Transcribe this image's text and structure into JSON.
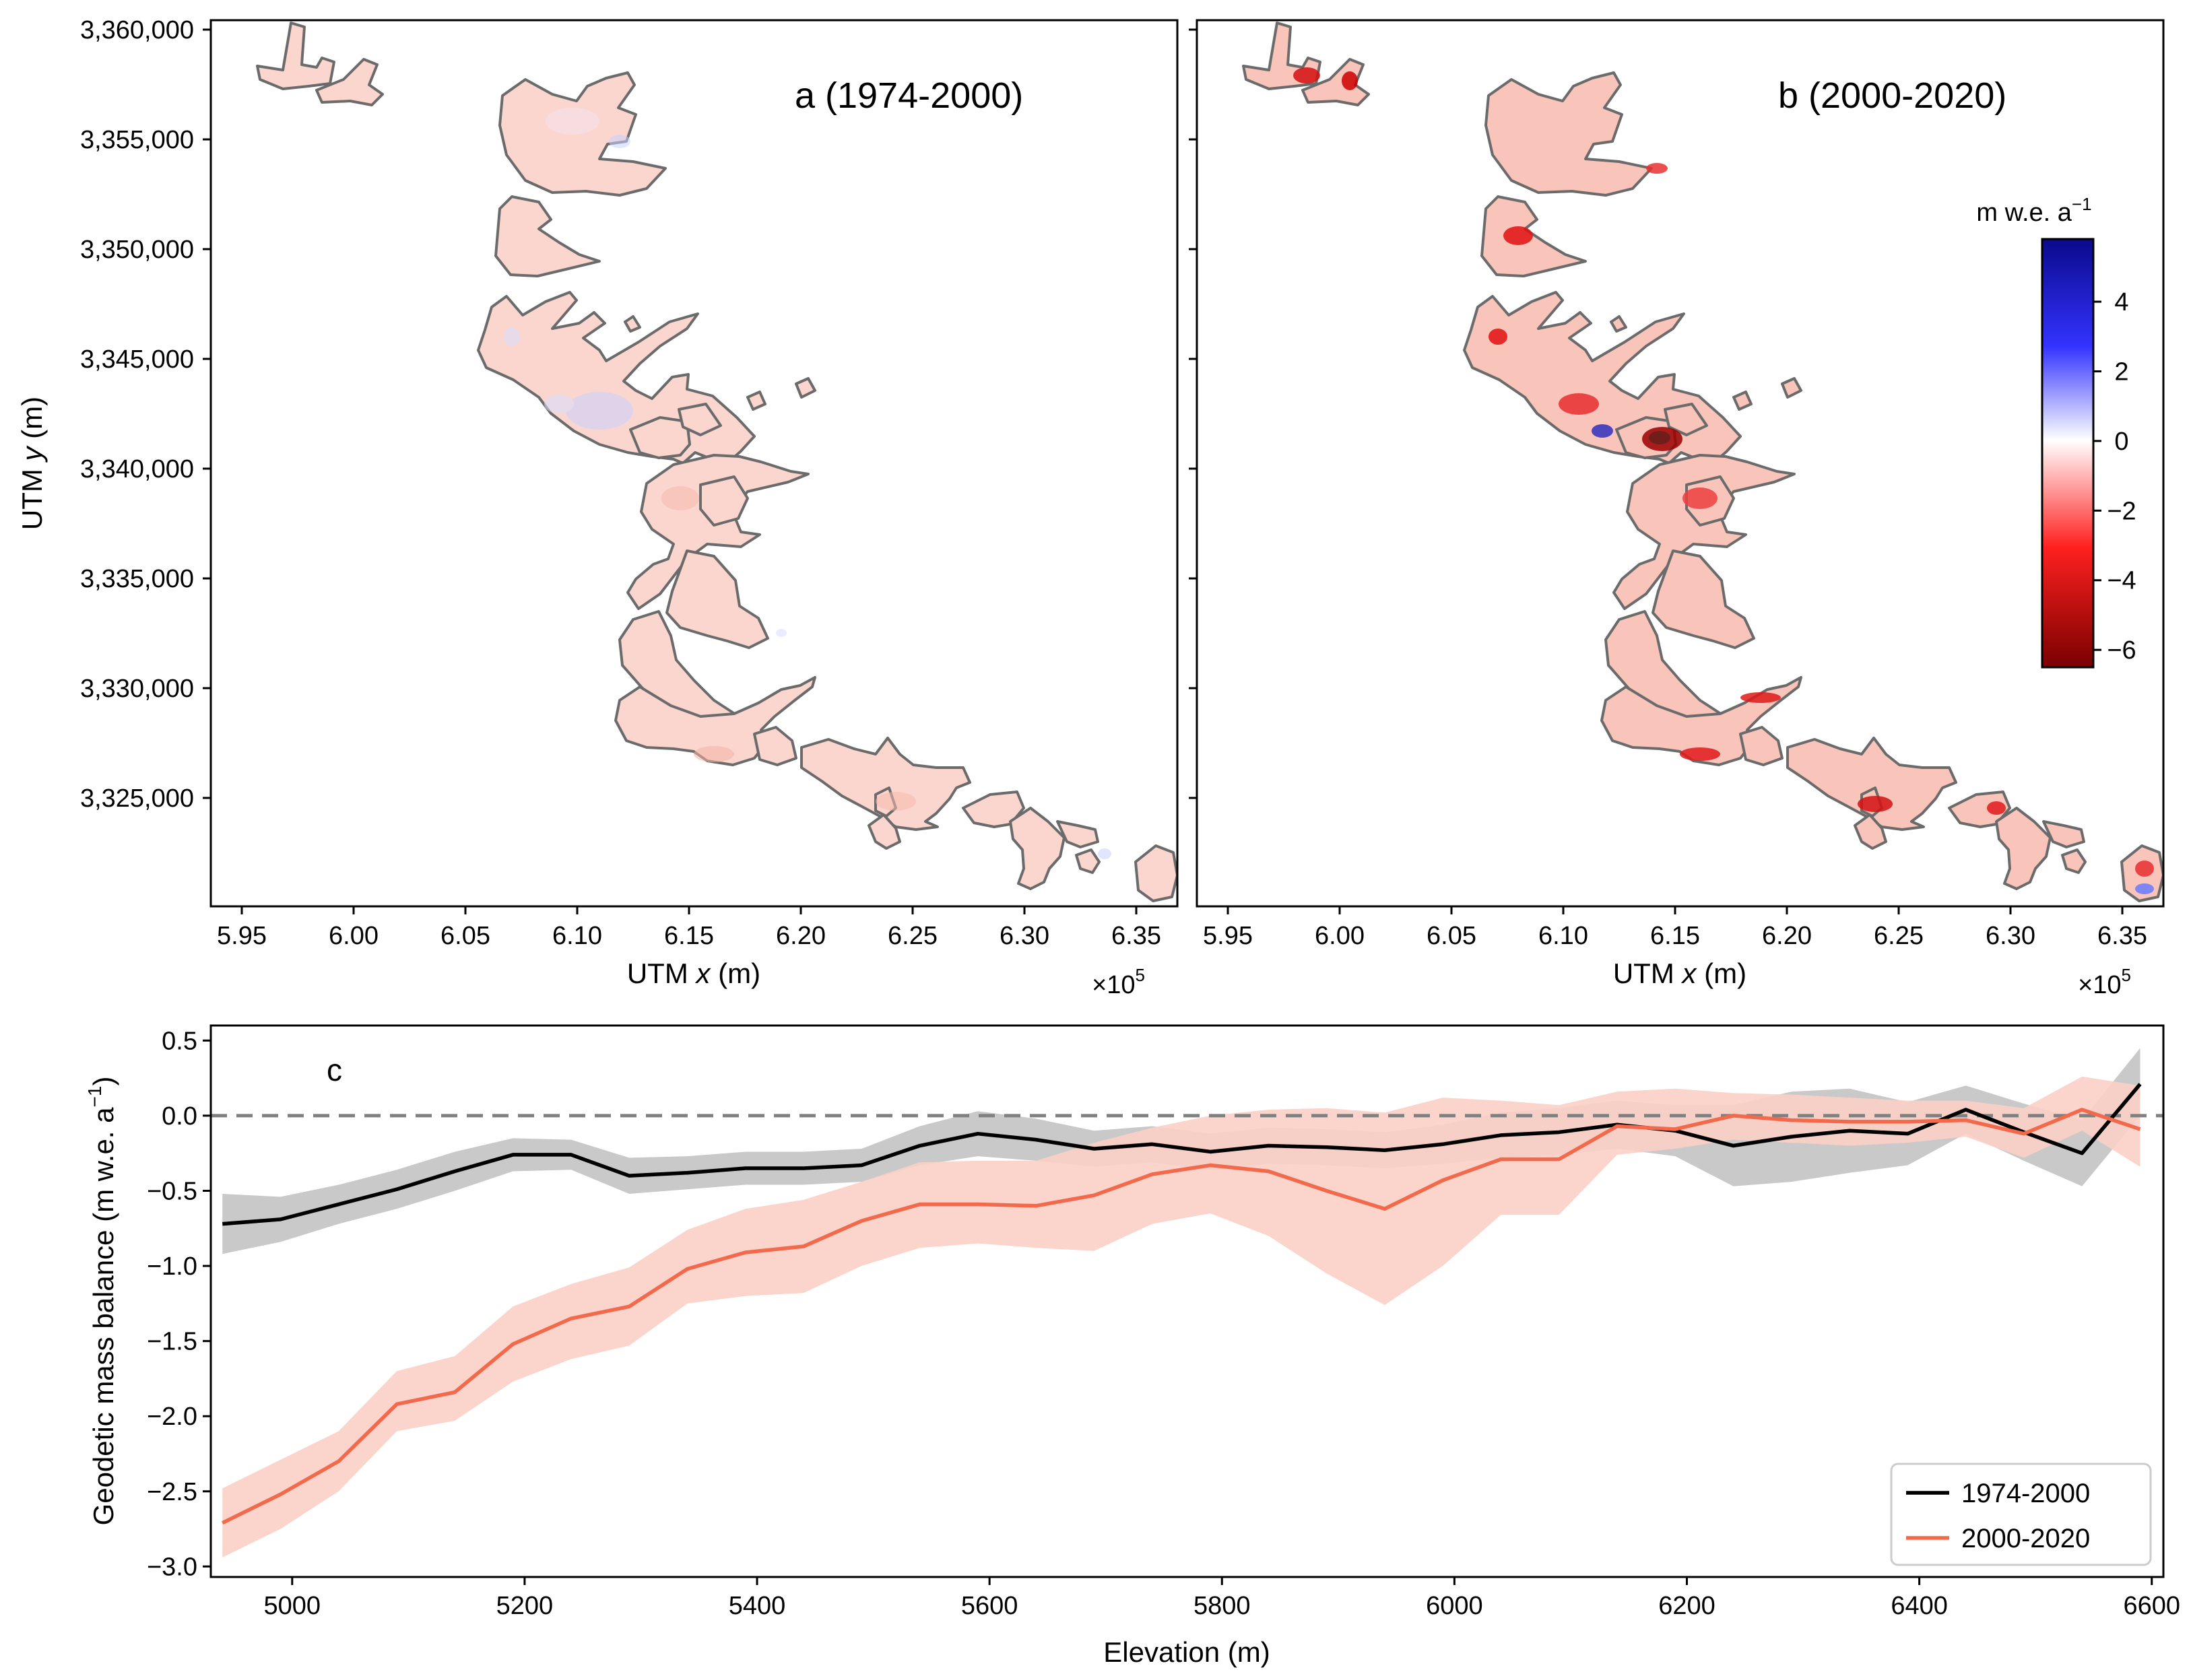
{
  "figure": {
    "panel_a": {
      "title": "a (1974-2000)",
      "xlabel_prefix": "UTM ",
      "xlabel_var": "x",
      "xlabel_suffix": " (m)",
      "ylabel_prefix": "UTM ",
      "ylabel_var": "y",
      "ylabel_suffix": " (m)",
      "x_ticks": [
        "5.95",
        "6.00",
        "6.05",
        "6.10",
        "6.15",
        "6.20",
        "6.25",
        "6.30",
        "6.35"
      ],
      "y_ticks": [
        "3,325,000",
        "3,330,000",
        "3,335,000",
        "3,340,000",
        "3,345,000",
        "3,350,000",
        "3,355,000",
        "3,360,000"
      ],
      "offset_base": "×10",
      "offset_exp": "5"
    },
    "panel_b": {
      "title": "b (2000-2020)",
      "xlabel_prefix": "UTM ",
      "xlabel_var": "x",
      "xlabel_suffix": " (m)",
      "x_ticks": [
        "5.95",
        "6.00",
        "6.05",
        "6.10",
        "6.15",
        "6.20",
        "6.25",
        "6.30",
        "6.35"
      ],
      "offset_base": "×10",
      "offset_exp": "5"
    },
    "colorbar": {
      "label_base": "m w.e. a",
      "label_exp": "−1",
      "range": [
        -6.5,
        5.8
      ],
      "ticks": [
        "4",
        "2",
        "0",
        "−2",
        "−4",
        "−6"
      ],
      "colors": {
        "positive": "#0a0a8c",
        "neutral": "#ffffff",
        "negative": "#7a0000"
      }
    }
  },
  "chart_data": {
    "type": "line",
    "panel_label": "c",
    "xlabel": "Elevation (m)",
    "ylabel_base": "Geodetic mass balance (m w.e. a",
    "ylabel_exp": "−1",
    "ylabel_close": ")",
    "xlim": [
      4930,
      6610
    ],
    "ylim": [
      -3.07,
      0.6
    ],
    "x_ticks": [
      5000,
      5200,
      5400,
      5600,
      5800,
      6000,
      6200,
      6400,
      6600
    ],
    "y_ticks": [
      0.5,
      0.0,
      -0.5,
      -1.0,
      -1.5,
      -2.0,
      -2.5,
      -3.0
    ],
    "y_tick_labels": [
      "0.5",
      "0.0",
      "−0.5",
      "−1.0",
      "−1.5",
      "−2.0",
      "−2.5",
      "−3.0"
    ],
    "reference_line": 0,
    "legend_position": "lower-right",
    "x": [
      4940,
      4990,
      5040,
      5090,
      5140,
      5190,
      5240,
      5290,
      5340,
      5390,
      5440,
      5490,
      5540,
      5590,
      5640,
      5690,
      5740,
      5790,
      5840,
      5890,
      5940,
      5990,
      6040,
      6090,
      6140,
      6190,
      6240,
      6290,
      6340,
      6390,
      6440,
      6490,
      6540,
      6590
    ],
    "series": [
      {
        "name": "1974-2000",
        "color": "#000000",
        "band_color": "#c9c9c9",
        "values": [
          -0.72,
          -0.69,
          -0.59,
          -0.49,
          -0.37,
          -0.26,
          -0.26,
          -0.4,
          -0.38,
          -0.35,
          -0.35,
          -0.33,
          -0.2,
          -0.12,
          -0.16,
          -0.22,
          -0.19,
          -0.24,
          -0.2,
          -0.21,
          -0.23,
          -0.19,
          -0.13,
          -0.11,
          -0.06,
          -0.1,
          -0.2,
          -0.14,
          -0.1,
          -0.12,
          0.04,
          -0.11,
          -0.25,
          0.21
        ],
        "lower": [
          -0.92,
          -0.84,
          -0.72,
          -0.62,
          -0.5,
          -0.37,
          -0.36,
          -0.52,
          -0.49,
          -0.46,
          -0.46,
          -0.44,
          -0.33,
          -0.27,
          -0.3,
          -0.34,
          -0.31,
          -0.36,
          -0.32,
          -0.33,
          -0.35,
          -0.32,
          -0.28,
          -0.26,
          -0.22,
          -0.27,
          -0.47,
          -0.44,
          -0.38,
          -0.33,
          -0.12,
          -0.3,
          -0.47,
          0.0
        ],
        "upper": [
          -0.52,
          -0.54,
          -0.46,
          -0.36,
          -0.24,
          -0.15,
          -0.16,
          -0.28,
          -0.27,
          -0.24,
          -0.24,
          -0.22,
          -0.07,
          0.03,
          -0.02,
          -0.1,
          -0.07,
          -0.12,
          -0.08,
          -0.09,
          -0.11,
          -0.06,
          0.02,
          0.05,
          0.1,
          0.07,
          0.07,
          0.16,
          0.18,
          0.09,
          0.2,
          0.08,
          -0.03,
          0.45
        ]
      },
      {
        "name": "2000-2020",
        "color": "#f26a4b",
        "band_color": "#fbcfc6",
        "values": [
          -2.71,
          -2.52,
          -2.3,
          -1.92,
          -1.84,
          -1.52,
          -1.35,
          -1.27,
          -1.02,
          -0.91,
          -0.87,
          -0.7,
          -0.59,
          -0.59,
          -0.6,
          -0.53,
          -0.39,
          -0.33,
          -0.37,
          -0.5,
          -0.62,
          -0.43,
          -0.29,
          -0.29,
          -0.07,
          -0.09,
          0.0,
          -0.03,
          -0.04,
          -0.04,
          -0.03,
          -0.12,
          0.04,
          -0.09
        ],
        "lower": [
          -2.94,
          -2.75,
          -2.5,
          -2.1,
          -2.03,
          -1.77,
          -1.62,
          -1.53,
          -1.25,
          -1.2,
          -1.18,
          -1.0,
          -0.88,
          -0.85,
          -0.88,
          -0.9,
          -0.72,
          -0.65,
          -0.8,
          -1.05,
          -1.26,
          -1.0,
          -0.66,
          -0.66,
          -0.26,
          -0.22,
          -0.16,
          -0.18,
          -0.2,
          -0.18,
          -0.14,
          -0.28,
          -0.1,
          -0.34
        ],
        "upper": [
          -2.48,
          -2.29,
          -2.1,
          -1.7,
          -1.6,
          -1.27,
          -1.12,
          -1.01,
          -0.76,
          -0.62,
          -0.56,
          -0.44,
          -0.31,
          -0.3,
          -0.3,
          -0.18,
          -0.08,
          0.0,
          0.04,
          0.05,
          0.02,
          0.12,
          0.1,
          0.07,
          0.16,
          0.18,
          0.15,
          0.14,
          0.12,
          0.1,
          0.1,
          0.05,
          0.26,
          0.2
        ]
      }
    ]
  }
}
